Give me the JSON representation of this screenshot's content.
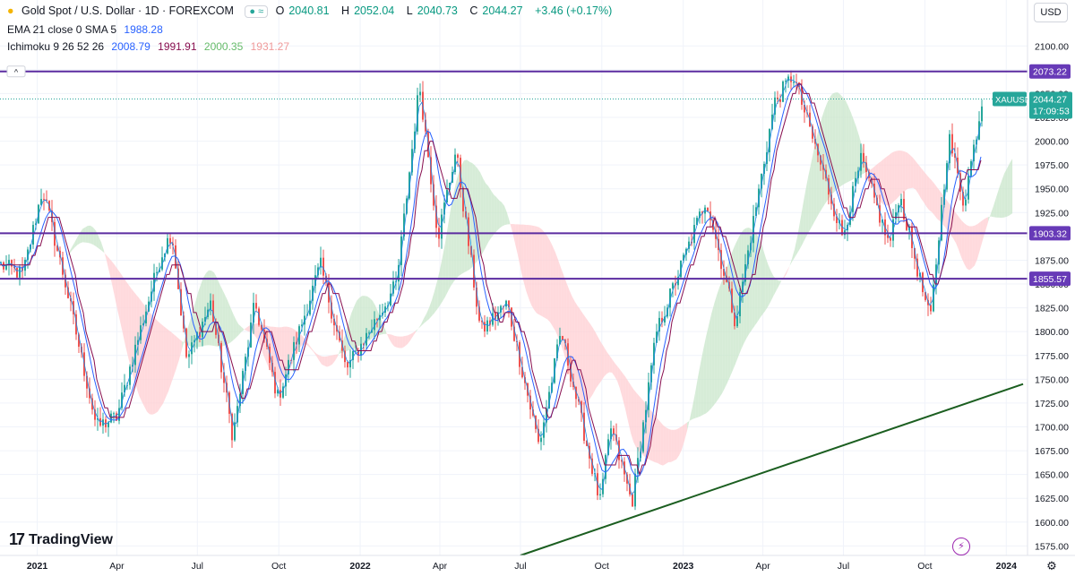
{
  "header": {
    "symbol_title": "Gold Spot / U.S. Dollar · 1D · FOREXCOM",
    "open_label": "O",
    "open": "2040.81",
    "high_label": "H",
    "high": "2052.04",
    "low_label": "L",
    "low": "2040.73",
    "close_label": "C",
    "close": "2044.27",
    "change": "+3.46 (+0.17%)",
    "currency": "USD"
  },
  "indicators": {
    "ema_label": "EMA 21 close 0 SMA 5",
    "ema_value": "1988.28",
    "ichimoku_label": "Ichimoku 9 26 52 26",
    "ichimoku_values": [
      "2008.79",
      "1991.91",
      "2000.35",
      "1931.27"
    ]
  },
  "colors": {
    "candle_up": "#26a69a",
    "candle_down": "#ef5350",
    "ema": "#2962ff",
    "kijun": "#880e4f",
    "cloud_green": "#c8e6c9",
    "cloud_red": "#ffcdd2",
    "hline": "#5b2ca0",
    "trendline": "#1b5e20",
    "price_tag": "#26a69a",
    "purple_tag": "#673ab7"
  },
  "chart_data": {
    "type": "candlestick",
    "title": "Gold Spot / U.S. Dollar · 1D · FOREXCOM",
    "ylim": [
      1565,
      2120
    ],
    "y_ticks": [
      1575,
      1600,
      1625,
      1650,
      1675,
      1700,
      1725,
      1750,
      1775,
      1800,
      1825,
      1850,
      1875,
      1900,
      1925,
      1950,
      1975,
      2000,
      2025,
      2050,
      2075,
      2100
    ],
    "x_tick_labels": [
      "2021",
      "Apr",
      "Jul",
      "Oct",
      "2022",
      "Apr",
      "Jul",
      "Oct",
      "2023",
      "Apr",
      "Jul",
      "Oct",
      "2024"
    ],
    "x_tick_dates": [
      "2021-01-01",
      "2021-04-01",
      "2021-07-01",
      "2021-10-01",
      "2022-01-01",
      "2022-04-01",
      "2022-07-01",
      "2022-10-01",
      "2023-01-01",
      "2023-04-01",
      "2023-07-01",
      "2023-10-01",
      "2024-01-01"
    ],
    "x_range": [
      "2020-11-20",
      "2024-01-25"
    ],
    "price_path": [
      [
        "2020-11-20",
        1870
      ],
      [
        "2020-12-15",
        1860
      ],
      [
        "2021-01-06",
        1950
      ],
      [
        "2021-02-01",
        1850
      ],
      [
        "2021-03-08",
        1700
      ],
      [
        "2021-03-31",
        1710
      ],
      [
        "2021-04-20",
        1780
      ],
      [
        "2021-05-20",
        1880
      ],
      [
        "2021-06-01",
        1905
      ],
      [
        "2021-06-18",
        1770
      ],
      [
        "2021-07-15",
        1830
      ],
      [
        "2021-08-09",
        1690
      ],
      [
        "2021-09-03",
        1830
      ],
      [
        "2021-09-29",
        1730
      ],
      [
        "2021-11-16",
        1870
      ],
      [
        "2021-12-15",
        1760
      ],
      [
        "2022-01-10",
        1800
      ],
      [
        "2022-02-10",
        1850
      ],
      [
        "2022-03-08",
        2060
      ],
      [
        "2022-03-29",
        1900
      ],
      [
        "2022-04-18",
        1990
      ],
      [
        "2022-05-16",
        1800
      ],
      [
        "2022-06-15",
        1830
      ],
      [
        "2022-07-21",
        1680
      ],
      [
        "2022-08-15",
        1800
      ],
      [
        "2022-09-28",
        1620
      ],
      [
        "2022-10-10",
        1700
      ],
      [
        "2022-11-03",
        1620
      ],
      [
        "2022-12-01",
        1800
      ],
      [
        "2023-01-26",
        1940
      ],
      [
        "2023-02-28",
        1810
      ],
      [
        "2023-04-13",
        2040
      ],
      [
        "2023-05-04",
        2070
      ],
      [
        "2023-06-29",
        1900
      ],
      [
        "2023-07-20",
        1980
      ],
      [
        "2023-08-21",
        1890
      ],
      [
        "2023-09-01",
        1945
      ],
      [
        "2023-10-06",
        1810
      ],
      [
        "2023-10-27",
        2005
      ],
      [
        "2023-11-13",
        1935
      ],
      [
        "2023-12-04",
        2044
      ]
    ],
    "horizontal_levels": [
      2073.22,
      1903.32,
      1855.57
    ],
    "trendline": [
      [
        "2022-07-01",
        1565
      ],
      [
        "2024-01-20",
        1745
      ]
    ],
    "last_price": 2044.27,
    "last_price_symbol": "XAUUSD",
    "countdown": "17:09:53",
    "series": [
      {
        "name": "EMA 21 close 0 SMA 5",
        "last": 1988.28
      },
      {
        "name": "Ichimoku 9 26 52 26",
        "values": [
          2008.79,
          1991.91,
          2000.35,
          1931.27
        ]
      }
    ]
  },
  "branding": {
    "logo_text": "TradingView"
  }
}
